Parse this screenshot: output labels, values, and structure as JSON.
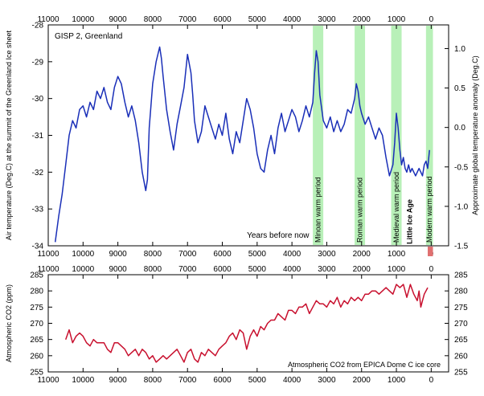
{
  "colors": {
    "temperature_line": "#1a2fb8",
    "co2_line": "#c8102e",
    "warm_band": "#b8f0b8",
    "little_ice_age_text": "#1f3fb0",
    "modern_marker": "#e07070"
  },
  "chart_data": [
    {
      "type": "line",
      "title": "GISP 2, Greenland",
      "xlabel": "Years before now",
      "ylabel": "Air temperature (Deg.C) at the summit of the Greenland Ice sheet",
      "ylabel_right": "Approximate global temperature anomaly (Deg.C)",
      "xlim": [
        11000,
        -500
      ],
      "ylim": [
        -34,
        -28
      ],
      "ylim_right": [
        -1.5,
        1.3
      ],
      "x_ticks": [
        11000,
        10000,
        9000,
        8000,
        7000,
        6000,
        5000,
        4000,
        3000,
        2000,
        1000,
        0
      ],
      "y_ticks": [
        -34,
        -33,
        -32,
        -31,
        -30,
        -29,
        -28
      ],
      "y_ticks_right": [
        -1.5,
        -1.0,
        -0.5,
        0.0,
        0.5,
        1.0
      ],
      "y_tick_labels_right": [
        "-1.5",
        "-1.0",
        "-0.5",
        "0.0",
        "0.5",
        "1.0"
      ],
      "grid": false,
      "bands": [
        {
          "label": "Minoan warm period",
          "x_start": 3400,
          "x_end": 3100
        },
        {
          "label": "Roman warm period",
          "x_start": 2200,
          "x_end": 1900
        },
        {
          "label": "Medieval warm period",
          "x_start": 1150,
          "x_end": 850
        },
        {
          "label": "Modern warm period",
          "x_start": 150,
          "x_end": -50
        }
      ],
      "annotation": "Little Ice Age",
      "series": [
        {
          "x": [
            10800,
            10700,
            10600,
            10500,
            10400,
            10300,
            10200,
            10100,
            10000,
            9900,
            9800,
            9700,
            9600,
            9500,
            9400,
            9300,
            9200,
            9100,
            9000,
            8900,
            8800,
            8700,
            8600,
            8500,
            8400,
            8300,
            8200,
            8150,
            8100,
            8000,
            7900,
            7800,
            7750,
            7700,
            7600,
            7500,
            7400,
            7300,
            7200,
            7100,
            7000,
            6900,
            6850,
            6800,
            6700,
            6600,
            6500,
            6400,
            6300,
            6200,
            6100,
            6000,
            5900,
            5800,
            5700,
            5600,
            5500,
            5400,
            5300,
            5200,
            5100,
            5000,
            4900,
            4800,
            4700,
            4600,
            4500,
            4400,
            4300,
            4200,
            4100,
            4000,
            3900,
            3800,
            3700,
            3600,
            3500,
            3400,
            3350,
            3300,
            3250,
            3200,
            3100,
            3000,
            2900,
            2800,
            2700,
            2600,
            2500,
            2400,
            2300,
            2200,
            2150,
            2100,
            2050,
            2000,
            1900,
            1800,
            1700,
            1600,
            1500,
            1400,
            1300,
            1200,
            1100,
            1050,
            1000,
            950,
            900,
            850,
            800,
            750,
            700,
            650,
            600,
            550,
            500,
            450,
            400,
            350,
            300,
            250,
            200,
            150,
            100,
            50
          ],
          "y": [
            -33.9,
            -33.2,
            -32.6,
            -31.8,
            -31.0,
            -30.6,
            -30.8,
            -30.3,
            -30.2,
            -30.5,
            -30.1,
            -30.3,
            -29.8,
            -30.0,
            -29.7,
            -30.1,
            -30.3,
            -29.7,
            -29.4,
            -29.6,
            -30.1,
            -30.5,
            -30.2,
            -30.6,
            -31.2,
            -32.0,
            -32.5,
            -32.2,
            -30.8,
            -29.6,
            -29.0,
            -28.6,
            -28.9,
            -29.4,
            -30.3,
            -30.9,
            -31.4,
            -30.7,
            -30.2,
            -29.7,
            -28.8,
            -29.3,
            -29.9,
            -30.6,
            -31.2,
            -30.9,
            -30.2,
            -30.5,
            -30.8,
            -31.1,
            -30.7,
            -31.0,
            -30.4,
            -31.1,
            -31.5,
            -30.9,
            -31.2,
            -30.6,
            -30.0,
            -30.3,
            -30.8,
            -31.5,
            -31.9,
            -32.0,
            -31.4,
            -31.0,
            -31.5,
            -30.8,
            -30.4,
            -30.9,
            -30.6,
            -30.3,
            -30.5,
            -30.9,
            -30.6,
            -30.2,
            -30.5,
            -30.1,
            -29.3,
            -28.7,
            -29.0,
            -29.9,
            -30.6,
            -30.8,
            -30.5,
            -30.9,
            -30.6,
            -30.9,
            -30.7,
            -30.3,
            -30.4,
            -30.0,
            -29.6,
            -29.8,
            -30.2,
            -30.4,
            -30.7,
            -30.5,
            -30.8,
            -31.1,
            -30.8,
            -31.0,
            -31.6,
            -32.1,
            -31.8,
            -31.2,
            -30.4,
            -30.8,
            -31.4,
            -31.8,
            -31.6,
            -31.9,
            -32.0,
            -31.8,
            -32.0,
            -31.9,
            -32.0,
            -32.1,
            -32.0,
            -31.9,
            -32.0,
            -32.1,
            -31.8,
            -31.7,
            -31.9,
            -31.4
          ]
        }
      ]
    },
    {
      "type": "line",
      "ylabel": "Atmospheric CO2 (ppm)",
      "annotation": "Atmospheric CO2 from EPICA Dome C ice core",
      "xlim": [
        11000,
        -500
      ],
      "ylim": [
        255,
        285
      ],
      "x_ticks": [
        11000,
        10000,
        9000,
        8000,
        7000,
        6000,
        5000,
        4000,
        3000,
        2000,
        1000,
        0
      ],
      "y_ticks": [
        255,
        260,
        265,
        270,
        275,
        280,
        285
      ],
      "grid": false,
      "series": [
        {
          "x": [
            10500,
            10400,
            10300,
            10200,
            10100,
            10000,
            9900,
            9800,
            9700,
            9600,
            9500,
            9400,
            9300,
            9200,
            9100,
            9000,
            8900,
            8800,
            8700,
            8600,
            8500,
            8400,
            8300,
            8200,
            8100,
            8000,
            7900,
            7800,
            7700,
            7600,
            7500,
            7400,
            7300,
            7200,
            7100,
            7000,
            6900,
            6800,
            6700,
            6600,
            6500,
            6400,
            6300,
            6200,
            6100,
            6000,
            5900,
            5800,
            5700,
            5600,
            5500,
            5400,
            5300,
            5200,
            5100,
            5000,
            4900,
            4800,
            4700,
            4600,
            4500,
            4400,
            4300,
            4200,
            4100,
            4000,
            3900,
            3800,
            3700,
            3600,
            3500,
            3400,
            3300,
            3200,
            3100,
            3000,
            2900,
            2800,
            2700,
            2600,
            2500,
            2400,
            2300,
            2200,
            2100,
            2000,
            1900,
            1800,
            1700,
            1600,
            1500,
            1400,
            1300,
            1200,
            1100,
            1000,
            900,
            800,
            700,
            600,
            500,
            400,
            350,
            300,
            250,
            200,
            100
          ],
          "y": [
            265,
            268,
            264,
            266,
            267,
            266,
            264,
            263,
            265,
            264,
            264,
            264,
            262,
            261,
            264,
            264,
            263,
            262,
            260,
            261,
            262,
            260,
            262,
            261,
            259,
            260,
            258,
            259,
            260,
            259,
            260,
            261,
            262,
            260,
            258,
            261,
            262,
            259,
            258,
            261,
            260,
            262,
            261,
            260,
            262,
            263,
            264,
            266,
            267,
            265,
            268,
            267,
            262,
            266,
            268,
            266,
            269,
            268,
            270,
            271,
            271,
            273,
            272,
            271,
            274,
            274,
            273,
            275,
            275,
            276,
            273,
            275,
            277,
            276,
            276,
            275,
            277,
            276,
            278,
            275,
            277,
            276,
            278,
            277,
            278,
            277,
            279,
            279,
            280,
            280,
            279,
            280,
            281,
            280,
            279,
            282,
            281,
            282,
            278,
            282,
            279,
            277,
            280,
            275,
            277,
            279,
            281
          ]
        }
      ]
    }
  ]
}
